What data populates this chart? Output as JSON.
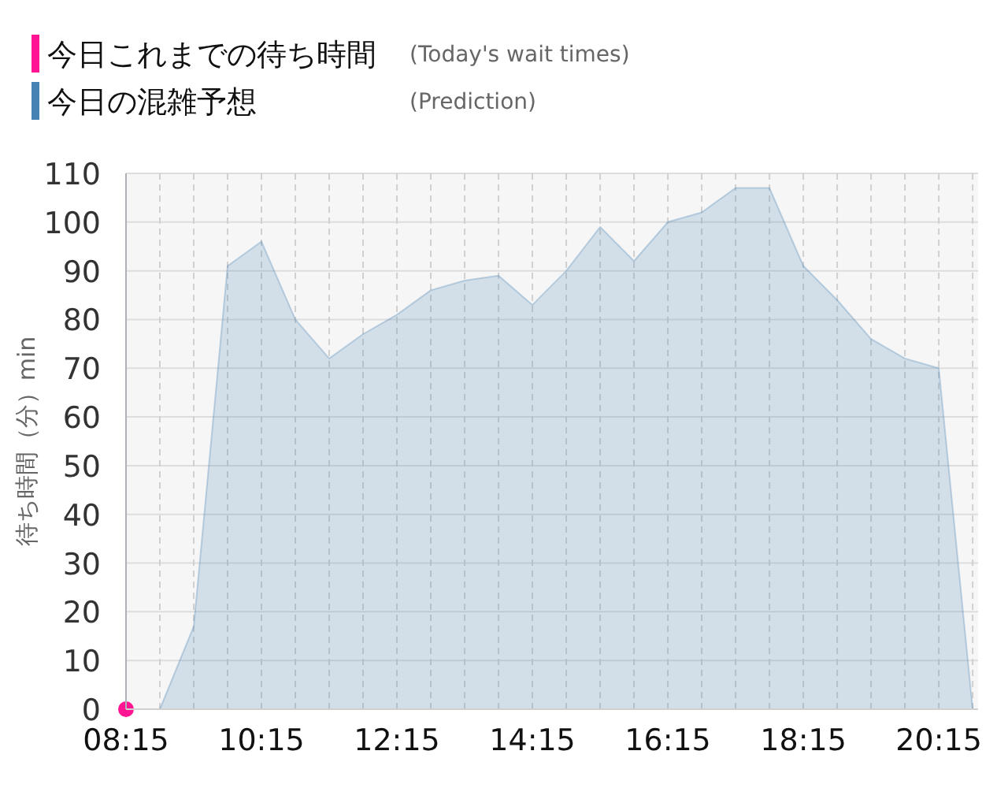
{
  "chart_data": {
    "type": "area",
    "ylabel": "待ち時間（分）min",
    "annotations": [
      "(Today's wait times)",
      "(Prediction)"
    ],
    "xlim": [
      8.25,
      20.83
    ],
    "xticks": [
      {
        "value": 8.25,
        "label": "08:15"
      },
      {
        "value": 8.75,
        "label": null
      },
      {
        "value": 9.25,
        "label": null
      },
      {
        "value": 9.75,
        "label": null
      },
      {
        "value": 10.25,
        "label": "10:15"
      },
      {
        "value": 10.75,
        "label": null
      },
      {
        "value": 11.25,
        "label": null
      },
      {
        "value": 11.75,
        "label": null
      },
      {
        "value": 12.25,
        "label": "12:15"
      },
      {
        "value": 12.75,
        "label": null
      },
      {
        "value": 13.25,
        "label": null
      },
      {
        "value": 13.75,
        "label": null
      },
      {
        "value": 14.25,
        "label": "14:15"
      },
      {
        "value": 14.75,
        "label": null
      },
      {
        "value": 15.25,
        "label": null
      },
      {
        "value": 15.75,
        "label": null
      },
      {
        "value": 16.25,
        "label": "16:15"
      },
      {
        "value": 16.75,
        "label": null
      },
      {
        "value": 17.25,
        "label": null
      },
      {
        "value": 17.75,
        "label": null
      },
      {
        "value": 18.25,
        "label": "18:15"
      },
      {
        "value": 18.75,
        "label": null
      },
      {
        "value": 19.25,
        "label": null
      },
      {
        "value": 19.75,
        "label": null
      },
      {
        "value": 20.25,
        "label": "20:15"
      },
      {
        "value": 20.75,
        "label": null
      }
    ],
    "ylim": [
      0,
      110
    ],
    "yticks": [
      0,
      10,
      20,
      30,
      40,
      50,
      60,
      70,
      80,
      90,
      100,
      110
    ],
    "grid": true,
    "legend": "top left",
    "series": [
      {
        "name": "今日これまでの待ち時間",
        "type": "scatter",
        "marker": "circle",
        "color": "#ff1493",
        "x": [
          8.25
        ],
        "values": [
          0
        ]
      },
      {
        "name": "今日の混雑予想",
        "color": "#4682b4",
        "x": [
          8.25,
          8.5,
          8.75,
          9.25,
          9.75,
          10.25,
          10.75,
          11.25,
          11.75,
          12.25,
          12.75,
          13.25,
          13.75,
          14.25,
          14.75,
          15.25,
          15.75,
          16.25,
          16.75,
          17.25,
          17.75,
          18.25,
          18.75,
          19.25,
          19.75,
          20.25,
          20.75
        ],
        "values": [
          0,
          0,
          0,
          17,
          91,
          96,
          80,
          72,
          77,
          81,
          86,
          88,
          89,
          83,
          90,
          99,
          92,
          100,
          102,
          107,
          107,
          91,
          84,
          76,
          72,
          70,
          0
        ]
      }
    ]
  }
}
